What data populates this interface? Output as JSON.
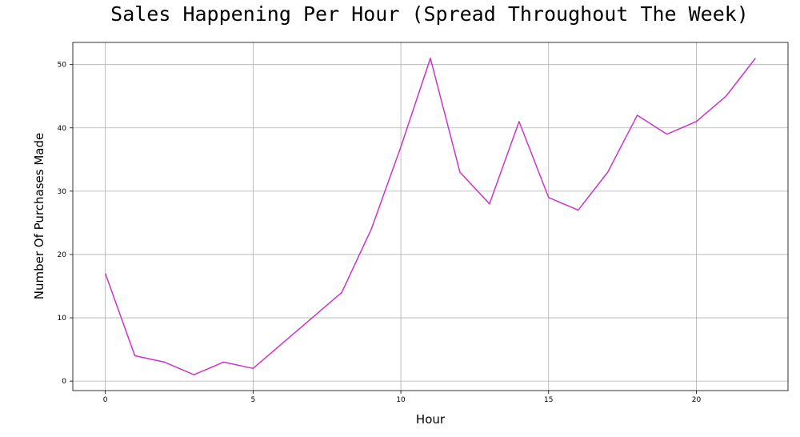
{
  "chart_data": {
    "type": "line",
    "title": "Sales Happening Per Hour (Spread Throughout The Week)",
    "xlabel": "Hour",
    "ylabel": "Number Of Purchases Made",
    "x": [
      0,
      1,
      2,
      3,
      4,
      5,
      6,
      7,
      8,
      9,
      10,
      11,
      12,
      13,
      14,
      15,
      16,
      17,
      18,
      19,
      20,
      21,
      22
    ],
    "series": [
      {
        "values": [
          17,
          4,
          3,
          1,
          3,
          2,
          6,
          10,
          14,
          24,
          37,
          51,
          33,
          28,
          41,
          29,
          27,
          33,
          42,
          39,
          41,
          45,
          51
        ],
        "color": "#cc33cc"
      }
    ],
    "xlim": [
      -1.1,
      23.1
    ],
    "ylim": [
      -1.5,
      53.5
    ],
    "xticks": [
      "0",
      "5",
      "10",
      "15",
      "20"
    ],
    "yticks": [
      "0",
      "10",
      "20",
      "30",
      "40",
      "50"
    ],
    "grid": true
  }
}
